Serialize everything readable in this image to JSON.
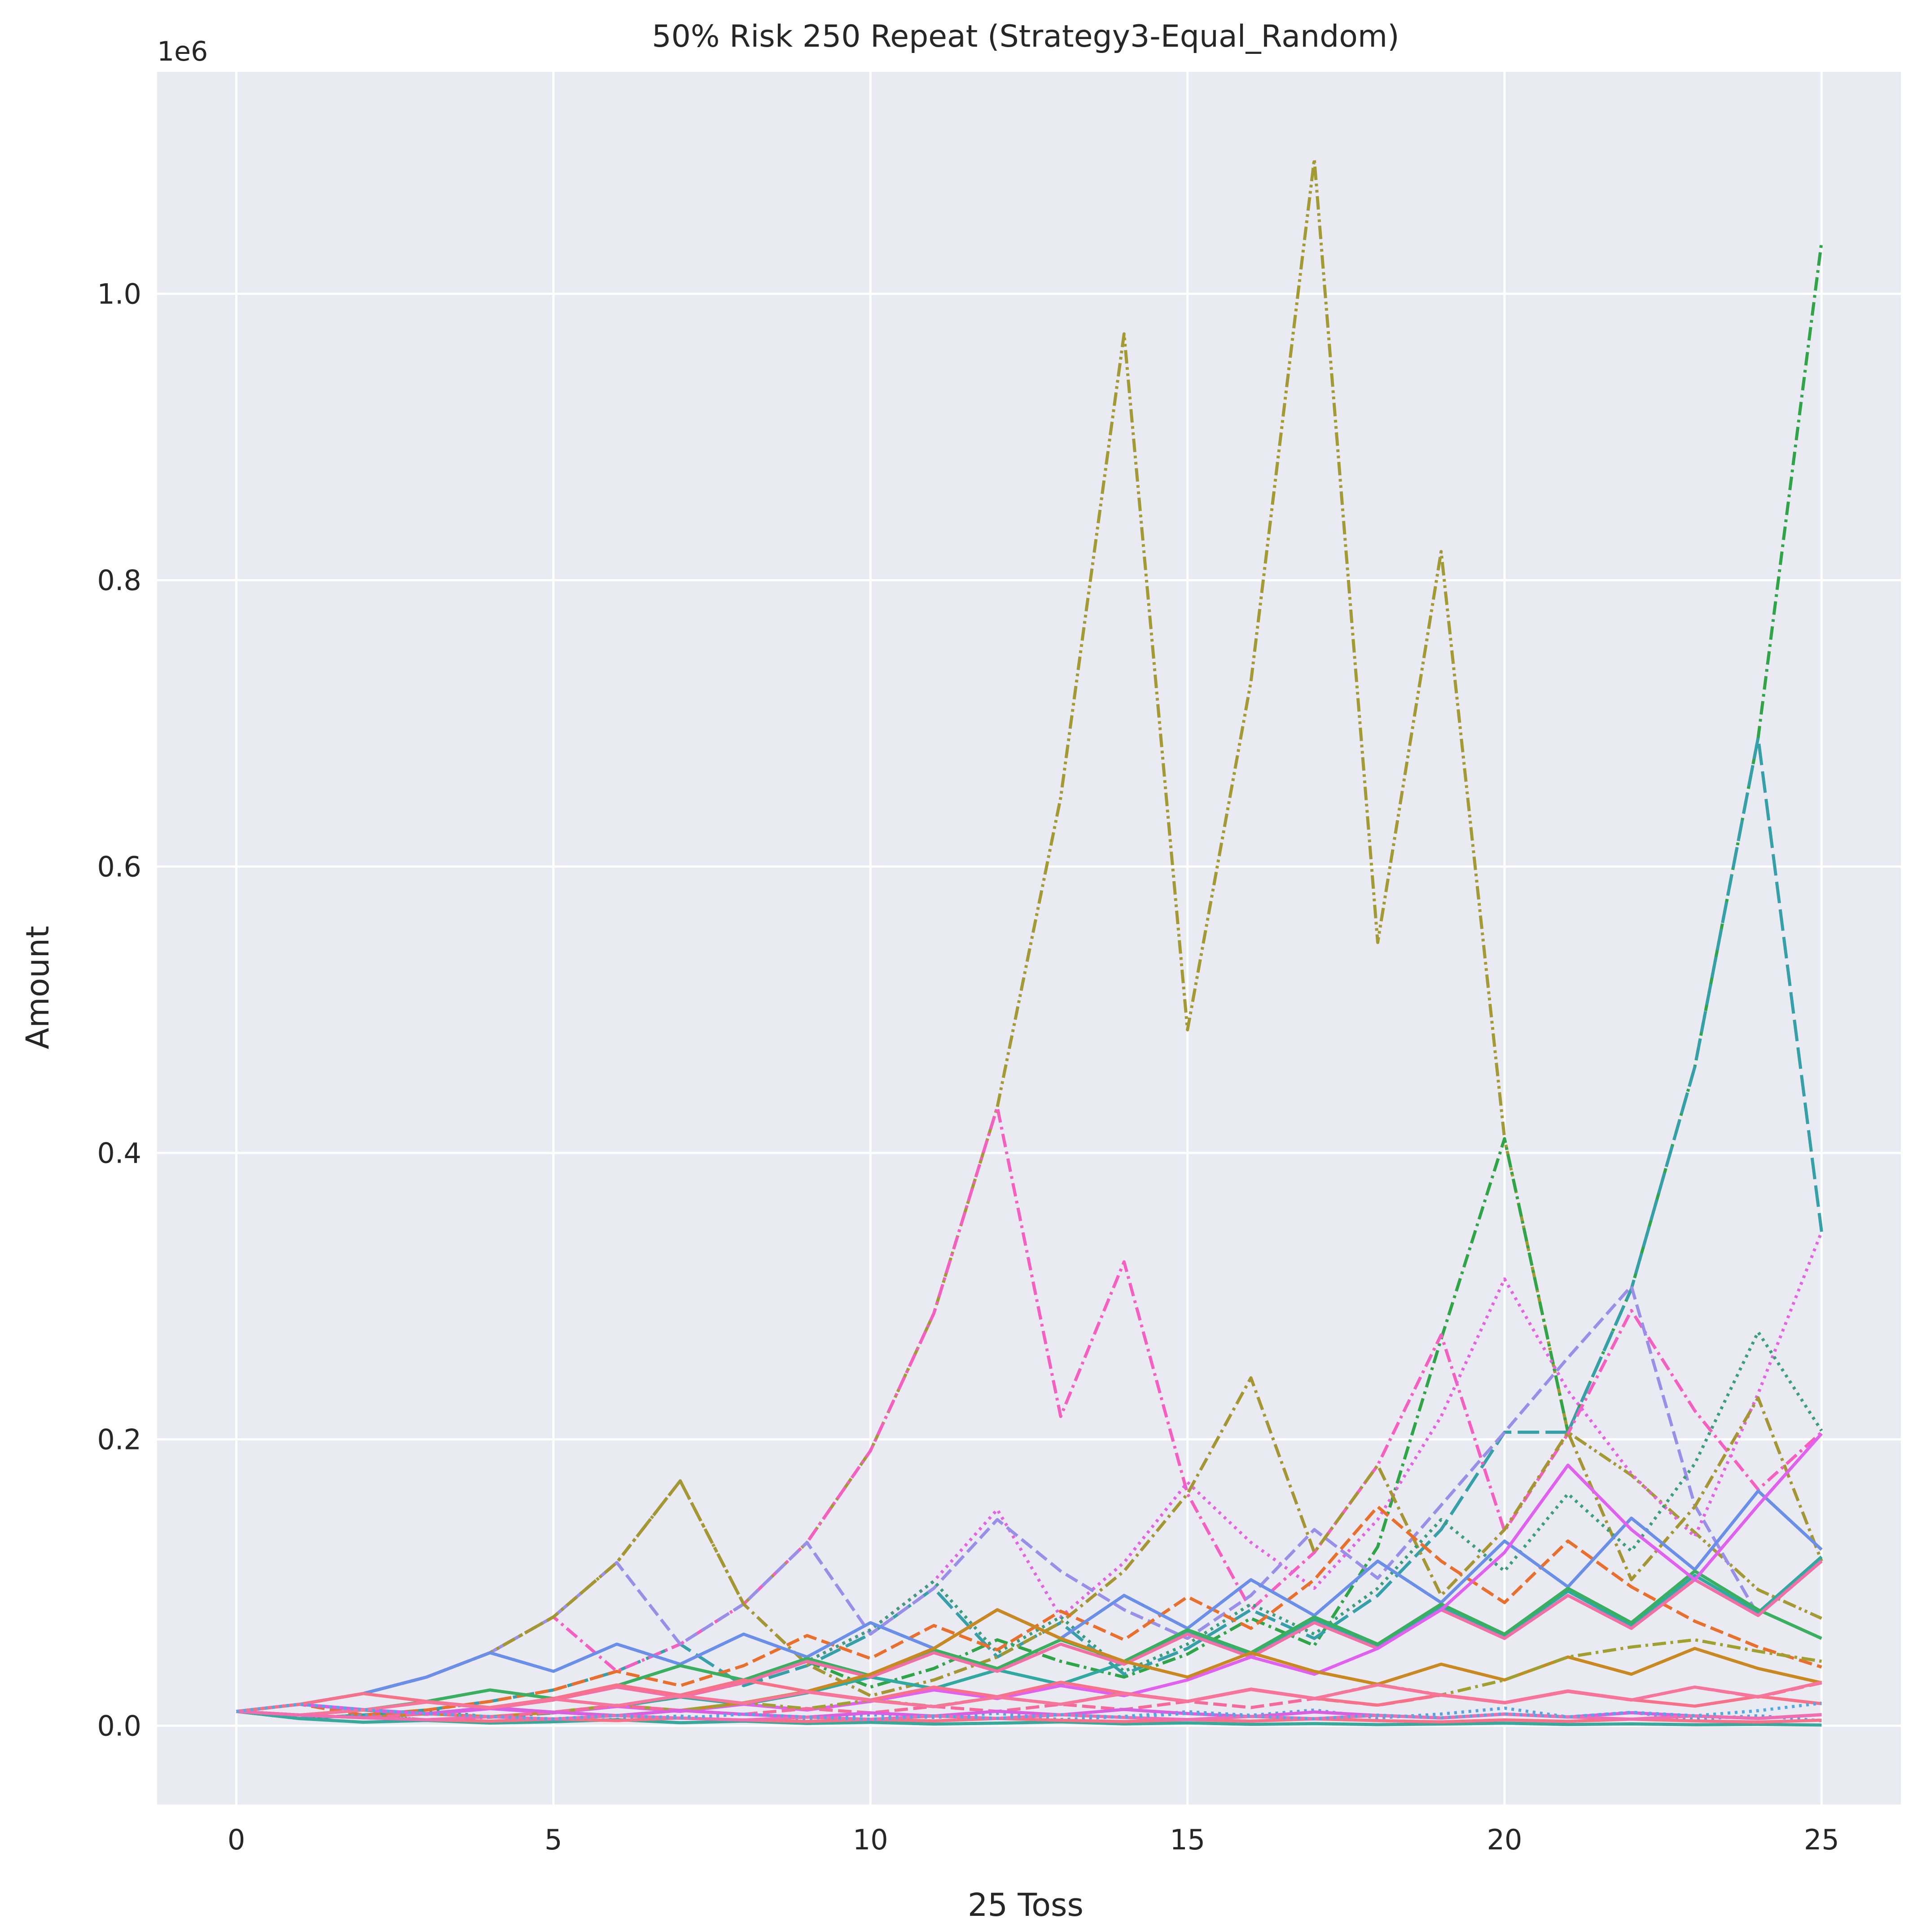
{
  "chart_data": {
    "type": "line",
    "title": "50% Risk 250 Repeat (Strategy3-Equal_Random)",
    "xlabel": "25 Toss",
    "ylabel": "Amount",
    "y_offset_label": "1e6",
    "xlim": [
      -1.25,
      26.25
    ],
    "ylim": [
      -0.055,
      1.155
    ],
    "y_scale_note": "values in units of 1e6",
    "x_ticks": [
      0,
      5,
      10,
      15,
      20,
      25
    ],
    "x_tick_labels": [
      "0",
      "5",
      "10",
      "15",
      "20",
      "25"
    ],
    "y_ticks": [
      0.0,
      0.2,
      0.4,
      0.6,
      0.8,
      1.0
    ],
    "y_tick_labels": [
      "0.0",
      "0.2",
      "0.4",
      "0.6",
      "0.8",
      "1.0"
    ],
    "grid": true,
    "legend": "none",
    "colors": {
      "axes_background": "#EAEAF2",
      "grid": "#FFFFFF",
      "text": "#262626"
    },
    "x": [
      0,
      1,
      2,
      3,
      4,
      5,
      6,
      7,
      8,
      9,
      10,
      11,
      12,
      13,
      14,
      15,
      16,
      17,
      18,
      19,
      20,
      21,
      22,
      23,
      24,
      25
    ],
    "series": [
      {
        "color": "#A39A34",
        "dash": "dot-dash2",
        "values": [
          0.01,
          0.015,
          0.0225,
          0.034,
          0.051,
          0.076,
          0.114,
          0.171,
          0.085,
          0.128,
          0.192,
          0.288,
          0.432,
          0.648,
          0.972,
          0.486,
          0.729,
          1.094,
          0.547,
          0.82,
          0.41,
          0.205,
          0.175,
          0.135,
          0.095,
          0.075
        ]
      },
      {
        "color": "#2FA548",
        "dash": "dashdot",
        "values": [
          0.01,
          0.005,
          0.0075,
          0.004,
          0.006,
          0.009,
          0.0135,
          0.02,
          0.03,
          0.045,
          0.027,
          0.04,
          0.06,
          0.045,
          0.034,
          0.05,
          0.075,
          0.056,
          0.125,
          0.27,
          0.41,
          0.205,
          0.305,
          0.46,
          0.69,
          1.036
        ]
      },
      {
        "color": "#36A0A8",
        "dash": "longdash",
        "values": [
          0.01,
          0.005,
          0.0075,
          0.011,
          0.017,
          0.025,
          0.038,
          0.057,
          0.028,
          0.042,
          0.064,
          0.096,
          0.048,
          0.072,
          0.036,
          0.054,
          0.081,
          0.061,
          0.091,
          0.137,
          0.205,
          0.205,
          0.305,
          0.46,
          0.69,
          0.345
        ]
      },
      {
        "color": "#F560C0",
        "dash": "dashdot",
        "values": [
          0.01,
          0.015,
          0.0225,
          0.034,
          0.051,
          0.076,
          0.038,
          0.057,
          0.085,
          0.128,
          0.192,
          0.288,
          0.432,
          0.216,
          0.324,
          0.162,
          0.081,
          0.121,
          0.182,
          0.273,
          0.136,
          0.204,
          0.29,
          0.22,
          0.165,
          0.205
        ]
      },
      {
        "color": "#E264E0",
        "dash": "dotted",
        "values": [
          0.01,
          0.005,
          0.0075,
          0.004,
          0.006,
          0.009,
          0.0135,
          0.02,
          0.03,
          0.045,
          0.067,
          0.101,
          0.151,
          0.076,
          0.114,
          0.17,
          0.128,
          0.096,
          0.144,
          0.216,
          0.312,
          0.234,
          0.176,
          0.132,
          0.232,
          0.345
        ]
      },
      {
        "color": "#9A8FE8",
        "dash": "dashed",
        "values": [
          0.01,
          0.015,
          0.0225,
          0.034,
          0.051,
          0.076,
          0.114,
          0.057,
          0.085,
          0.128,
          0.064,
          0.096,
          0.144,
          0.108,
          0.081,
          0.061,
          0.091,
          0.137,
          0.103,
          0.154,
          0.205,
          0.257,
          0.307,
          0.154,
          0.077,
          0.115
        ]
      },
      {
        "color": "#A49633",
        "dash": "dashdot",
        "values": [
          0.01,
          0.015,
          0.0225,
          0.034,
          0.051,
          0.076,
          0.114,
          0.171,
          0.085,
          0.043,
          0.021,
          0.032,
          0.048,
          0.072,
          0.108,
          0.162,
          0.243,
          0.121,
          0.182,
          0.091,
          0.137,
          0.205,
          0.102,
          0.153,
          0.229,
          0.115
        ]
      },
      {
        "color": "#3A9E7A",
        "dash": "dotted",
        "values": [
          0.01,
          0.005,
          0.0075,
          0.011,
          0.006,
          0.009,
          0.0135,
          0.02,
          0.03,
          0.045,
          0.067,
          0.101,
          0.051,
          0.076,
          0.038,
          0.057,
          0.085,
          0.064,
          0.096,
          0.144,
          0.108,
          0.162,
          0.122,
          0.183,
          0.275,
          0.206
        ]
      },
      {
        "color": "#E8702C",
        "dash": "dashed",
        "values": [
          0.01,
          0.015,
          0.0075,
          0.011,
          0.017,
          0.025,
          0.038,
          0.028,
          0.042,
          0.063,
          0.047,
          0.07,
          0.053,
          0.08,
          0.06,
          0.09,
          0.068,
          0.102,
          0.153,
          0.115,
          0.086,
          0.129,
          0.097,
          0.073,
          0.055,
          0.041
        ]
      },
      {
        "color": "#6A8FE8",
        "dash": "solid",
        "values": [
          0.01,
          0.015,
          0.0225,
          0.034,
          0.051,
          0.038,
          0.057,
          0.043,
          0.064,
          0.048,
          0.072,
          0.054,
          0.081,
          0.061,
          0.091,
          0.068,
          0.102,
          0.077,
          0.115,
          0.086,
          0.129,
          0.097,
          0.145,
          0.109,
          0.164,
          0.123
        ]
      },
      {
        "color": "#30A9A0",
        "dash": "solid",
        "values": [
          0.01,
          0.0075,
          0.011,
          0.008,
          0.012,
          0.009,
          0.0135,
          0.02,
          0.015,
          0.023,
          0.034,
          0.026,
          0.039,
          0.029,
          0.044,
          0.066,
          0.05,
          0.074,
          0.056,
          0.083,
          0.063,
          0.094,
          0.07,
          0.105,
          0.079,
          0.118
        ]
      },
      {
        "color": "#3BAF60",
        "dash": "solid",
        "values": [
          0.01,
          0.015,
          0.011,
          0.017,
          0.025,
          0.019,
          0.028,
          0.042,
          0.032,
          0.047,
          0.035,
          0.053,
          0.04,
          0.06,
          0.045,
          0.067,
          0.051,
          0.076,
          0.057,
          0.085,
          0.064,
          0.096,
          0.072,
          0.108,
          0.081,
          0.061
        ]
      },
      {
        "color": "#F26FA5",
        "dash": "solid",
        "values": [
          0.01,
          0.0075,
          0.011,
          0.008,
          0.012,
          0.018,
          0.027,
          0.02,
          0.03,
          0.045,
          0.034,
          0.051,
          0.038,
          0.057,
          0.043,
          0.064,
          0.048,
          0.072,
          0.054,
          0.081,
          0.061,
          0.091,
          0.068,
          0.102,
          0.077,
          0.115
        ]
      },
      {
        "color": "#E060F0",
        "dash": "solid",
        "values": [
          0.01,
          0.015,
          0.011,
          0.008,
          0.012,
          0.009,
          0.0135,
          0.01,
          0.015,
          0.011,
          0.017,
          0.025,
          0.019,
          0.028,
          0.021,
          0.032,
          0.048,
          0.036,
          0.054,
          0.081,
          0.121,
          0.182,
          0.137,
          0.102,
          0.154,
          0.204
        ]
      },
      {
        "color": "#C88A20",
        "dash": "solid",
        "values": [
          0.01,
          0.0075,
          0.0056,
          0.0084,
          0.0063,
          0.0095,
          0.0071,
          0.0107,
          0.016,
          0.024,
          0.036,
          0.054,
          0.081,
          0.061,
          0.045,
          0.034,
          0.051,
          0.038,
          0.029,
          0.043,
          0.032,
          0.048,
          0.036,
          0.054,
          0.04,
          0.03
        ]
      },
      {
        "color": "#5AA0E0",
        "dash": "dotted",
        "values": [
          0.01,
          0.005,
          0.0075,
          0.004,
          0.002,
          0.003,
          0.0045,
          0.0068,
          0.0034,
          0.0051,
          0.0077,
          0.0058,
          0.0087,
          0.0043,
          0.0065,
          0.0098,
          0.0073,
          0.011,
          0.0055,
          0.0082,
          0.0123,
          0.0062,
          0.0093,
          0.0046,
          0.007,
          0.0035
        ]
      },
      {
        "color": "#9FA030",
        "dash": "dashdot",
        "values": [
          0.01,
          0.0075,
          0.011,
          0.0085,
          0.0127,
          0.0095,
          0.0143,
          0.0107,
          0.016,
          0.012,
          0.018,
          0.0135,
          0.02,
          0.015,
          0.0227,
          0.017,
          0.0255,
          0.019,
          0.0287,
          0.0215,
          0.032,
          0.048,
          0.055,
          0.06,
          0.052,
          0.045
        ]
      },
      {
        "color": "#F46A9B",
        "dash": "dashed",
        "values": [
          0.01,
          0.0075,
          0.0056,
          0.0084,
          0.0063,
          0.0095,
          0.0142,
          0.0107,
          0.008,
          0.012,
          0.009,
          0.0135,
          0.01,
          0.015,
          0.0113,
          0.017,
          0.0127,
          0.019,
          0.0143,
          0.0214,
          0.016,
          0.024,
          0.018,
          0.027,
          0.02,
          0.03
        ]
      },
      {
        "color": "#38A89D",
        "dash": "solid",
        "values": [
          0.01,
          0.005,
          0.0025,
          0.0037,
          0.0019,
          0.0028,
          0.0042,
          0.0021,
          0.0032,
          0.0016,
          0.0024,
          0.0012,
          0.0018,
          0.0027,
          0.0013,
          0.002,
          0.001,
          0.0015,
          0.0008,
          0.0012,
          0.0018,
          0.0009,
          0.0013,
          0.0007,
          0.001,
          0.0005
        ]
      },
      {
        "color": "#D75FE0",
        "dash": "solid",
        "values": [
          0.01,
          0.015,
          0.0113,
          0.0085,
          0.0127,
          0.0095,
          0.0071,
          0.0107,
          0.008,
          0.006,
          0.009,
          0.0068,
          0.0101,
          0.0076,
          0.0114,
          0.0085,
          0.0064,
          0.0096,
          0.0072,
          0.0054,
          0.0081,
          0.0061,
          0.0091,
          0.0068,
          0.0051,
          0.0077
        ]
      },
      {
        "color": "#F77189",
        "dash": "solid",
        "values": [
          0.01,
          0.0075,
          0.0056,
          0.0042,
          0.0032,
          0.0048,
          0.0036,
          0.0054,
          0.004,
          0.003,
          0.0045,
          0.0034,
          0.0051,
          0.0038,
          0.0029,
          0.0043,
          0.0032,
          0.0048,
          0.0036,
          0.0027,
          0.0041,
          0.0031,
          0.0046,
          0.0034,
          0.0026,
          0.0039
        ]
      },
      {
        "color": "#F77189",
        "dash": "solid",
        "values": [
          0.01,
          0.015,
          0.0225,
          0.017,
          0.0127,
          0.019,
          0.0285,
          0.0214,
          0.032,
          0.024,
          0.018,
          0.027,
          0.0203,
          0.0304,
          0.0228,
          0.0171,
          0.0256,
          0.0192,
          0.0144,
          0.0216,
          0.0162,
          0.0243,
          0.0182,
          0.0137,
          0.0205,
          0.0154
        ]
      },
      {
        "color": "#F7749A",
        "dash": "solid",
        "values": [
          0.01,
          0.0075,
          0.011,
          0.0165,
          0.0124,
          0.0186,
          0.014,
          0.021,
          0.0157,
          0.0236,
          0.0177,
          0.0133,
          0.02,
          0.015,
          0.0225,
          0.0169,
          0.0253,
          0.019,
          0.0285,
          0.0214,
          0.016,
          0.024,
          0.018,
          0.027,
          0.0203,
          0.0304
        ]
      },
      {
        "color": "#F06DB0",
        "dash": "solid",
        "values": [
          0.01,
          0.0075,
          0.0056,
          0.0042,
          0.0063,
          0.0047,
          0.0071,
          0.0053,
          0.004,
          0.006,
          0.0045,
          0.0068,
          0.0051,
          0.0077,
          0.0058,
          0.0043,
          0.0065,
          0.0049,
          0.0073,
          0.0055,
          0.0082,
          0.0062,
          0.0046,
          0.0069,
          0.0052,
          0.0078
        ]
      },
      {
        "color": "#4FA8E8",
        "dash": "dotted",
        "values": [
          0.01,
          0.015,
          0.0113,
          0.0085,
          0.0064,
          0.0048,
          0.0072,
          0.0054,
          0.0081,
          0.0061,
          0.0046,
          0.0069,
          0.0052,
          0.0078,
          0.0058,
          0.0087,
          0.0066,
          0.0049,
          0.0074,
          0.0055,
          0.0083,
          0.0062,
          0.0094,
          0.007,
          0.0105,
          0.0158
        ]
      }
    ]
  }
}
